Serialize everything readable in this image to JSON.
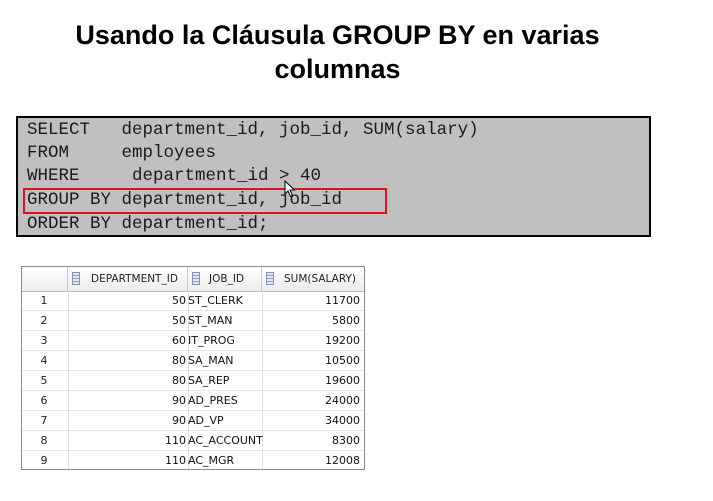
{
  "title": {
    "line1": "Usando la Cláusula GROUP BY en varias",
    "line2": "columnas"
  },
  "sql": {
    "lines": [
      "SELECT   department_id, job_id, SUM(salary)",
      "FROM     employees",
      "WHERE     department_id > 40",
      "GROUP BY department_id, job_id",
      "ORDER BY department_id;"
    ],
    "highlighted_line_index": 3,
    "highlight_color": "#e0101c",
    "box_background": "#c0c0c0"
  },
  "cursor": {
    "icon": "mouse-pointer-icon"
  },
  "results": {
    "columns": [
      "DEPARTMENT_ID",
      "JOB_ID",
      "SUM(SALARY)"
    ],
    "column_icon": "column-sort-icon",
    "rows": [
      {
        "n": "1",
        "department_id": "50",
        "job_id": "ST_CLERK",
        "sum_salary": "11700"
      },
      {
        "n": "2",
        "department_id": "50",
        "job_id": "ST_MAN",
        "sum_salary": "5800"
      },
      {
        "n": "3",
        "department_id": "60",
        "job_id": "IT_PROG",
        "sum_salary": "19200"
      },
      {
        "n": "4",
        "department_id": "80",
        "job_id": "SA_MAN",
        "sum_salary": "10500"
      },
      {
        "n": "5",
        "department_id": "80",
        "job_id": "SA_REP",
        "sum_salary": "19600"
      },
      {
        "n": "6",
        "department_id": "90",
        "job_id": "AD_PRES",
        "sum_salary": "24000"
      },
      {
        "n": "7",
        "department_id": "90",
        "job_id": "AD_VP",
        "sum_salary": "34000"
      },
      {
        "n": "8",
        "department_id": "110",
        "job_id": "AC_ACCOUNT",
        "sum_salary": "8300"
      },
      {
        "n": "9",
        "department_id": "110",
        "job_id": "AC_MGR",
        "sum_salary": "12008"
      }
    ]
  }
}
